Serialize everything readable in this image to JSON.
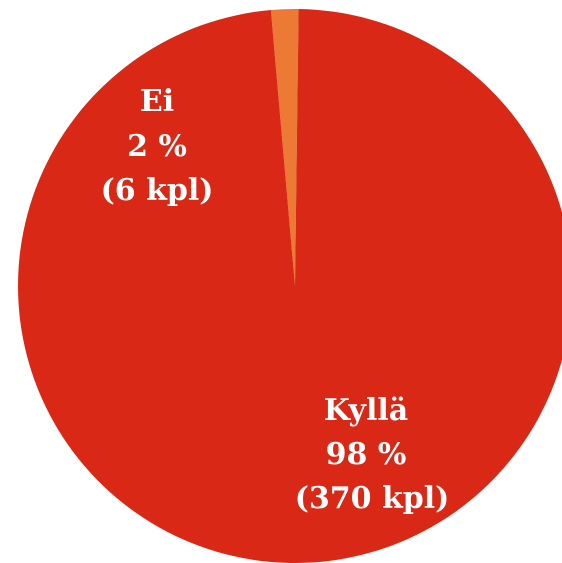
{
  "chart_data": {
    "type": "pie",
    "title": "",
    "slices": [
      {
        "label": "Kyllä",
        "percent_label": "98 %",
        "count_label": "(370 kpl)",
        "value": 370,
        "color": "#d92816"
      },
      {
        "label": "Ei",
        "percent_label": "2 %",
        "count_label": "(6 kpl)",
        "value": 6,
        "color": "#ec7a34"
      }
    ],
    "start_angle_deg": -5,
    "legend": "none"
  }
}
